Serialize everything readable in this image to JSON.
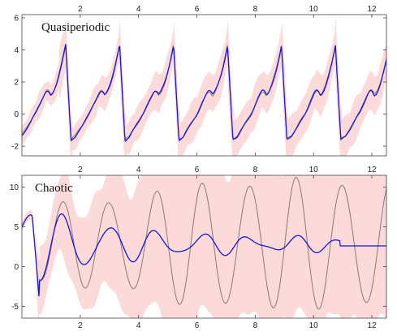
{
  "chart_data": [
    {
      "type": "line",
      "title": "Quasiperiodic",
      "xlim": [
        0,
        12.5
      ],
      "ylim": [
        -2.6,
        6.2
      ],
      "xticks": [
        2,
        4,
        6,
        8,
        10,
        12
      ],
      "yticks": [
        -2,
        0,
        2,
        4,
        6
      ],
      "x_tick_position": "top",
      "period": 1.85,
      "phase": 1.5,
      "series": [
        {
          "role": "truth",
          "color": "#8a7a74",
          "description_points": {
            "x": [
              0.0,
              0.3,
              0.8,
              1.1,
              1.5,
              1.9,
              2.5,
              3.0,
              3.35,
              3.75,
              4.3
            ],
            "y": [
              0.2,
              -0.1,
              1.3,
              2.6,
              4.3,
              -1.5,
              0.0,
              2.5,
              4.5,
              -1.7,
              -0.1
            ]
          }
        },
        {
          "role": "mean",
          "color": "#1515e0",
          "description_points": {
            "x": [
              0.0,
              0.3,
              0.8,
              1.1,
              1.5,
              1.9,
              2.5,
              3.0,
              3.35,
              3.75,
              4.3
            ],
            "y": [
              0.1,
              -0.2,
              1.2,
              2.5,
              4.3,
              -1.6,
              -0.1,
              2.4,
              4.4,
              -1.8,
              -0.2
            ]
          }
        },
        {
          "role": "uncertainty-band",
          "color": "#fbd3d3"
        }
      ]
    },
    {
      "type": "line",
      "title": "Chaotic",
      "xlim": [
        0,
        12.5
      ],
      "ylim": [
        -6.5,
        11.5
      ],
      "xticks": [
        2,
        4,
        6,
        8,
        10,
        12
      ],
      "yticks": [
        -5,
        0,
        5,
        10
      ],
      "x_tick_position": "both",
      "forecast_start": 10.9,
      "forecast_value": 2.6,
      "series": [
        {
          "role": "truth",
          "color": "#8a7a74",
          "description_points": {
            "x": [
              0.0,
              0.3,
              0.6,
              1.3,
              2.0,
              2.7,
              3.5,
              4.2,
              5.0,
              5.8,
              6.6,
              7.4,
              8.3,
              9.0,
              10.0,
              11.0,
              11.8,
              12.5
            ],
            "y": [
              5.0,
              6.5,
              -2.5,
              4.0,
              7.5,
              -1.0,
              9.5,
              -3.5,
              10.0,
              -5.5,
              11.5,
              -4.5,
              10.0,
              -4.0,
              9.5,
              -4.0,
              6.5,
              -3.0
            ]
          }
        },
        {
          "role": "mean",
          "color": "#1515e0",
          "description_points": {
            "x": [
              0.0,
              0.3,
              0.6,
              1.3,
              2.0,
              2.7,
              3.5,
              4.2,
              5.0,
              5.8,
              6.6,
              7.4,
              8.3,
              9.0,
              10.0,
              10.9,
              12.5
            ],
            "y": [
              5.0,
              6.5,
              -2.5,
              4.0,
              6.0,
              2.0,
              6.0,
              0.5,
              5.5,
              0.0,
              4.0,
              2.0,
              3.5,
              2.5,
              3.0,
              2.6,
              2.6
            ]
          }
        },
        {
          "role": "uncertainty-band",
          "color": "#fbd3d3"
        }
      ]
    }
  ]
}
